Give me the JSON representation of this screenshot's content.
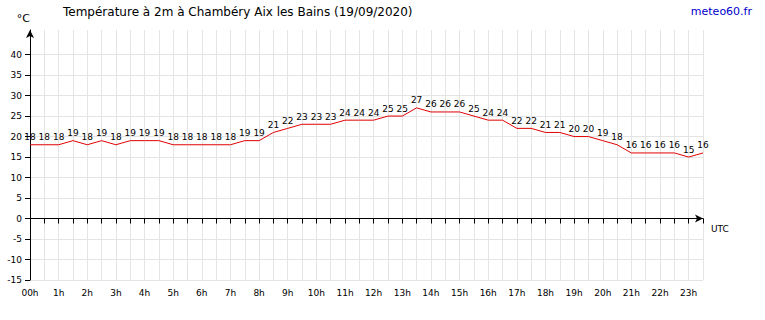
{
  "chart_data": {
    "type": "line",
    "title": "Température à 2m à Chambéry Aix les Bains (19/09/2020)",
    "annotations": [
      "meteo60.fr"
    ],
    "y_label": "°C",
    "x_label": "UTC",
    "categories": [
      "00h",
      null,
      "1h",
      null,
      "2h",
      null,
      "3h",
      null,
      "4h",
      null,
      "5h",
      null,
      "6h",
      null,
      "7h",
      null,
      "8h",
      null,
      "9h",
      null,
      "10h",
      null,
      "11h",
      null,
      "12h",
      null,
      "13h",
      null,
      "14h",
      null,
      "15h",
      null,
      "16h",
      null,
      "17h",
      null,
      "18h",
      null,
      "19h",
      null,
      "20h",
      null,
      "21h",
      null,
      "22h",
      null,
      "23h",
      null
    ],
    "values": [
      18,
      18,
      18,
      19,
      18,
      19,
      18,
      19,
      19,
      19,
      18,
      18,
      18,
      18,
      18,
      19,
      19,
      21,
      22,
      23,
      23,
      23,
      24,
      24,
      24,
      25,
      25,
      27,
      26,
      26,
      26,
      25,
      24,
      24,
      22,
      22,
      21,
      21,
      20,
      20,
      19,
      18,
      16,
      16,
      16,
      16,
      15,
      16
    ],
    "color": "#e00000",
    "ylim": [
      -15,
      46
    ],
    "yticks": [
      -15,
      -10,
      -5,
      0,
      5,
      10,
      15,
      20,
      25,
      30,
      35,
      40
    ],
    "grid": true,
    "data_labels": true
  }
}
